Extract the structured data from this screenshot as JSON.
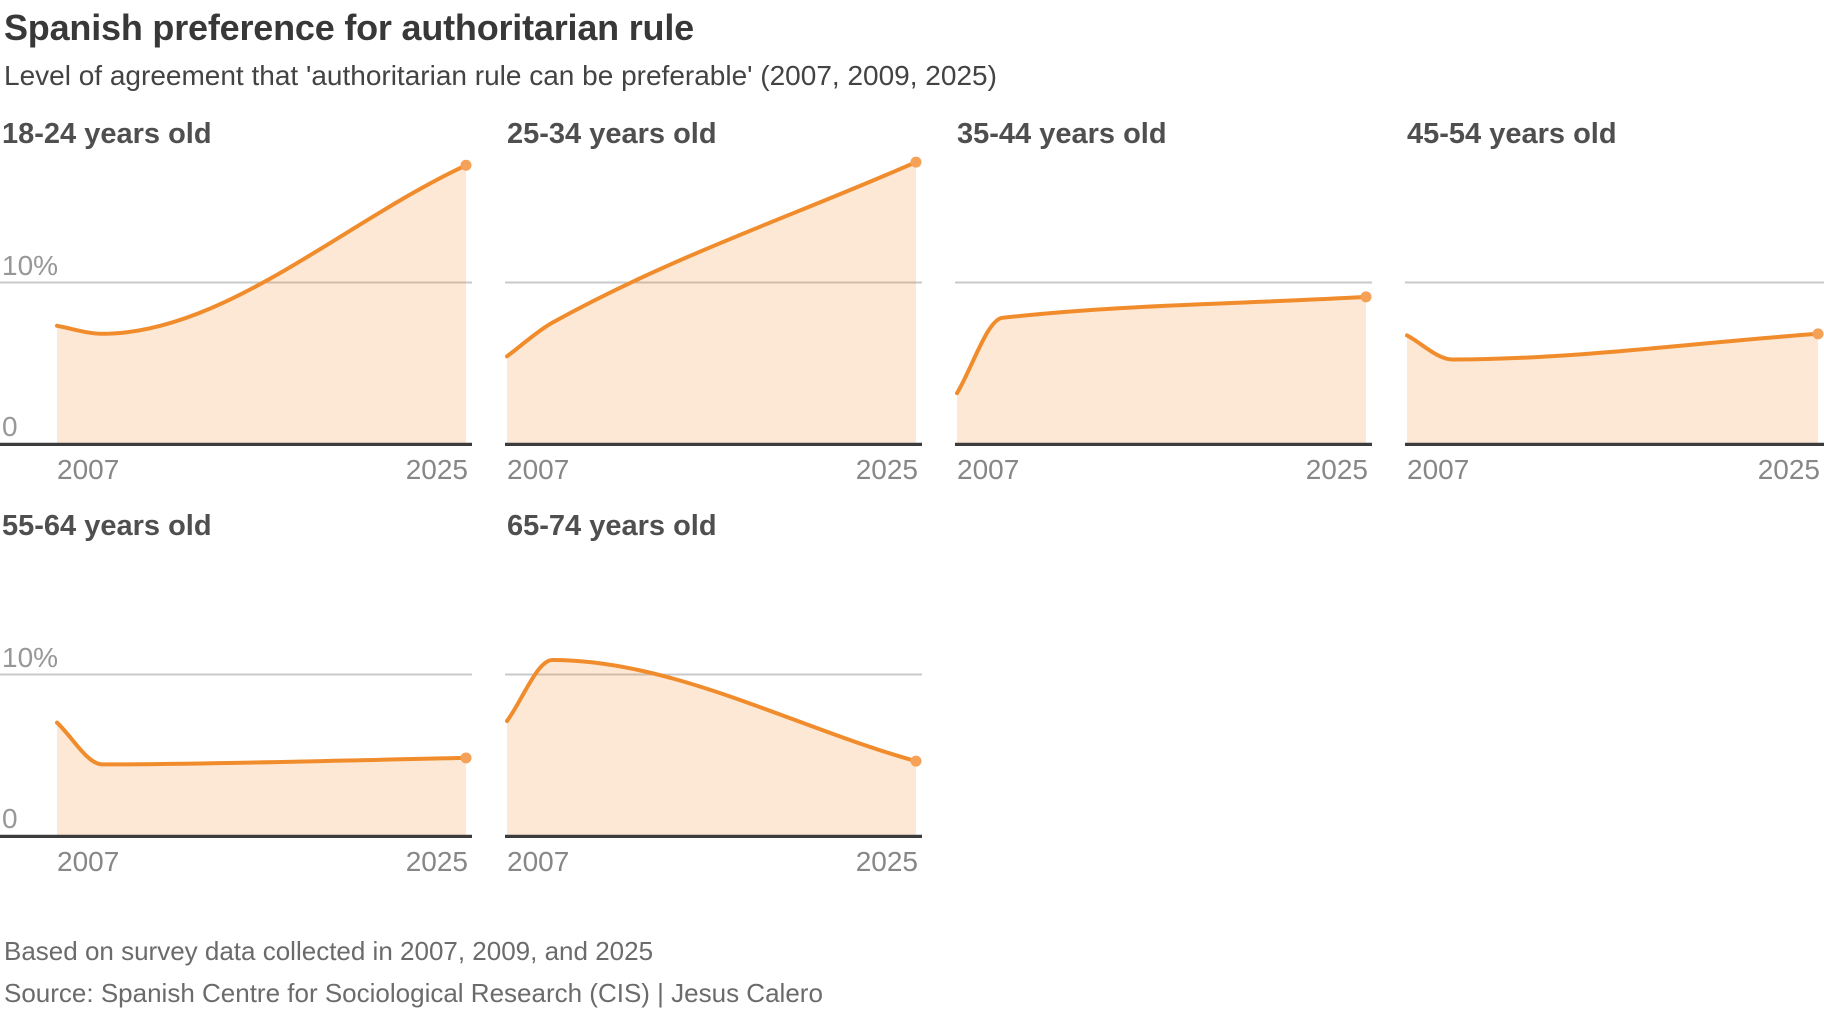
{
  "header": {
    "title": "Spanish preference for authoritarian rule",
    "subtitle": "Level of agreement that 'authoritarian rule can be preferable' (2007, 2009, 2025)"
  },
  "axis": {
    "x_start": "2007",
    "x_end": "2025",
    "y_gridline_label": "10%",
    "y_base_label": "0"
  },
  "colors": {
    "line": "#F18C2D",
    "fill": "rgba(241,140,45,0.2)",
    "dot": "#F5A158",
    "gridline": "#C9C9C9",
    "axis_line": "#3C3C3C"
  },
  "chart_data": [
    {
      "type": "area",
      "title": "18-24 years old",
      "x": [
        2007,
        2009,
        2025
      ],
      "values": [
        7.3,
        6.8,
        17.3
      ],
      "ylim": [
        0,
        19
      ],
      "gridline_value": 10,
      "x_ticks": [
        "2007",
        "2025"
      ],
      "y_labels_visible": true,
      "y_gridline_label": "10%",
      "y_base_label": "0",
      "legend": "none",
      "grid": "single horizontal line at 10%"
    },
    {
      "type": "area",
      "title": "25-34 years old",
      "x": [
        2007,
        2009,
        2025
      ],
      "values": [
        5.4,
        7.5,
        17.5
      ],
      "ylim": [
        0,
        19
      ],
      "gridline_value": 10,
      "x_ticks": [
        "2007",
        "2025"
      ],
      "y_labels_visible": false
    },
    {
      "type": "area",
      "title": "35-44 years old",
      "x": [
        2007,
        2009,
        2025
      ],
      "values": [
        3.1,
        7.8,
        9.1
      ],
      "ylim": [
        0,
        19
      ],
      "gridline_value": 10,
      "x_ticks": [
        "2007",
        "2025"
      ],
      "y_labels_visible": false
    },
    {
      "type": "area",
      "title": "45-54 years old",
      "x": [
        2007,
        2009,
        2025
      ],
      "values": [
        6.7,
        5.2,
        6.8
      ],
      "ylim": [
        0,
        19
      ],
      "gridline_value": 10,
      "x_ticks": [
        "2007",
        "2025"
      ],
      "y_labels_visible": false
    },
    {
      "type": "area",
      "title": "55-64 years old",
      "x": [
        2007,
        2009,
        2025
      ],
      "values": [
        7.0,
        4.4,
        4.8
      ],
      "ylim": [
        0,
        19
      ],
      "gridline_value": 10,
      "x_ticks": [
        "2007",
        "2025"
      ],
      "y_labels_visible": true,
      "y_gridline_label": "10%",
      "y_base_label": "0"
    },
    {
      "type": "area",
      "title": "65-74 years old",
      "x": [
        2007,
        2009,
        2025
      ],
      "values": [
        7.1,
        10.9,
        4.6
      ],
      "ylim": [
        0,
        19
      ],
      "gridline_value": 10,
      "x_ticks": [
        "2007",
        "2025"
      ],
      "y_labels_visible": false
    }
  ],
  "footer": {
    "note": "Based on survey data collected in 2007, 2009, and 2025",
    "source": "Source: Spanish Centre for Sociological Research (CIS) | Jesus Calero"
  }
}
